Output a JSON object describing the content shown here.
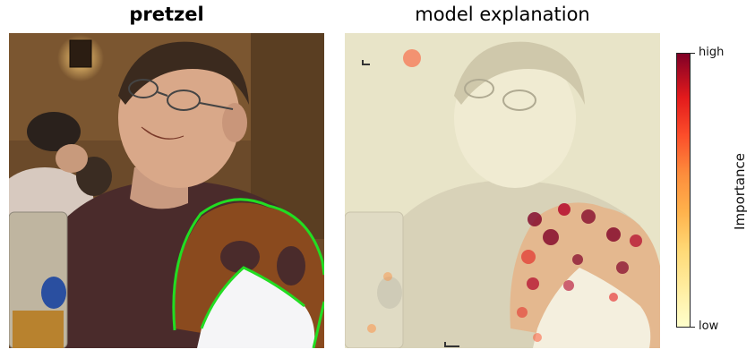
{
  "left_panel": {
    "title": "pretzel"
  },
  "right_panel": {
    "title": "model explanation"
  },
  "colorbar": {
    "label": "Importance",
    "high_label": "high",
    "low_label": "low",
    "colors": [
      "#ffffcc",
      "#ffeda0",
      "#fed976",
      "#feb24c",
      "#fd8d3c",
      "#fc4e2a",
      "#e31a1c",
      "#800026"
    ]
  },
  "colors": {
    "segmentation_outline": "#22dd22",
    "background_wall": "#6b4a2a",
    "heatmap_tint": "#e8e4c8"
  }
}
